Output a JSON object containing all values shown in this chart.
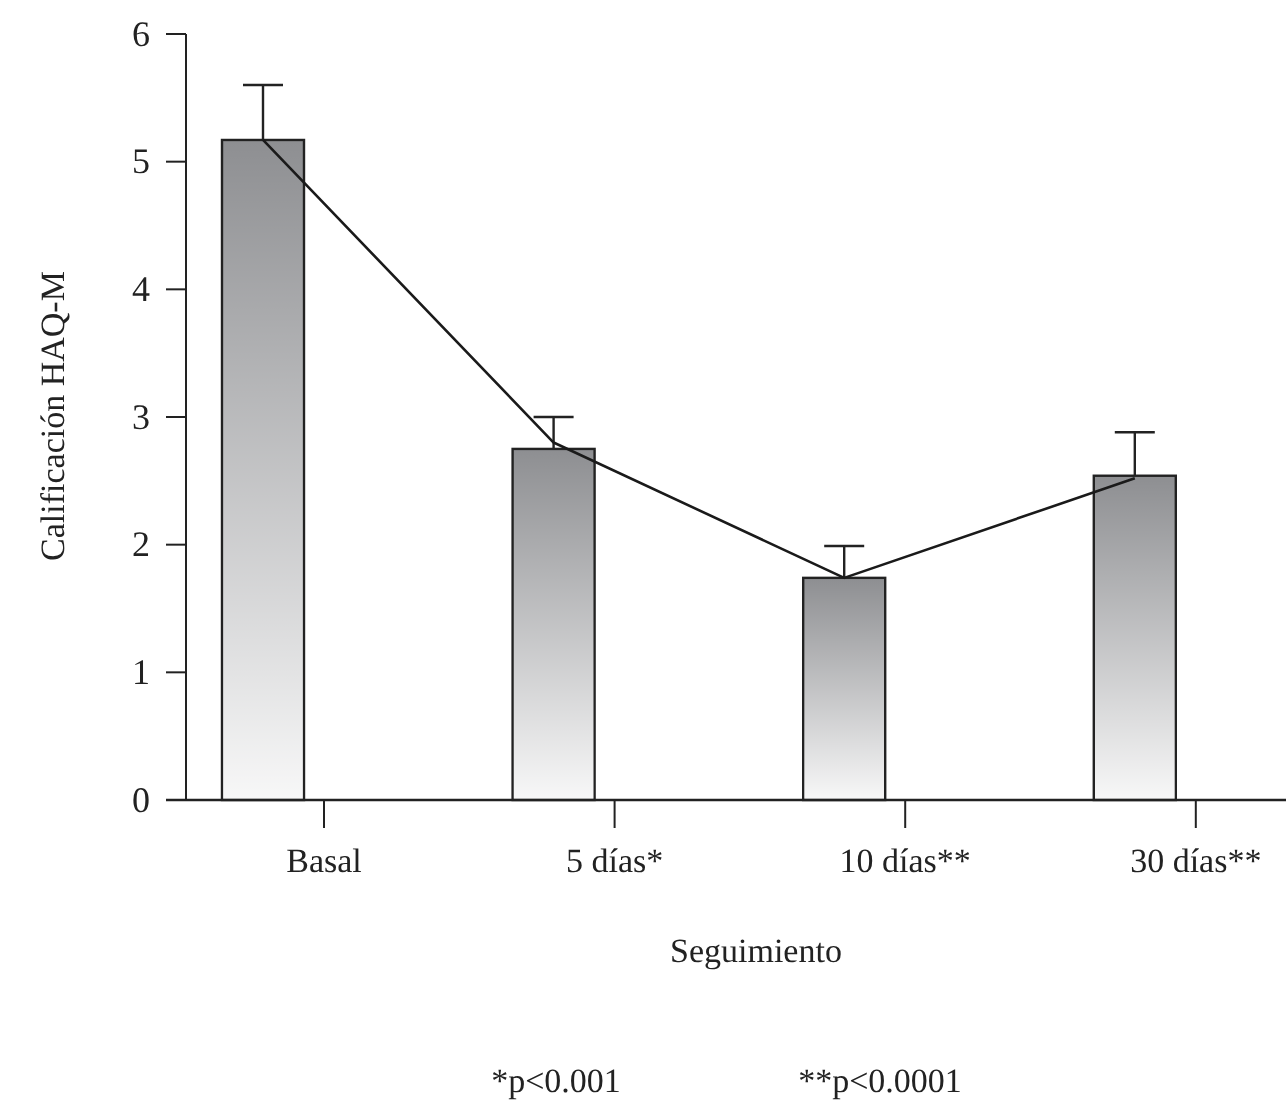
{
  "chart_data": {
    "type": "bar",
    "xlabel": "Seguimiento",
    "ylabel": "Calificación HAQ-M",
    "categories": [
      "Basal",
      "5 días*",
      "10 días**",
      "30 días**"
    ],
    "series": [
      {
        "color": "#8e8f92",
        "values": [
          5.17,
          2.75,
          1.74,
          2.54
        ],
        "errors": [
          [
            5.17,
            5.6
          ],
          [
            2.75,
            3.0
          ],
          [
            1.74,
            1.99
          ],
          [
            2.54,
            2.88
          ]
        ]
      },
      {
        "type": "line",
        "color": "#1a1a1a",
        "values": [
          5.17,
          2.8,
          1.74,
          2.52
        ]
      }
    ],
    "ylim": [
      0,
      6
    ],
    "yticks": [
      0,
      1,
      2,
      3,
      4,
      5,
      6
    ],
    "grid": false,
    "annotations": [
      "*p<0.001",
      "**p<0.0001"
    ]
  }
}
